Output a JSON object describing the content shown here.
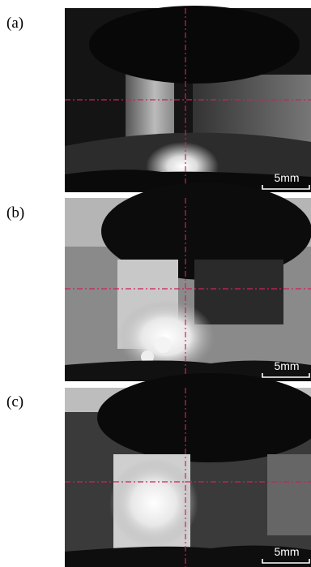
{
  "panels": [
    {
      "label": "(a)",
      "scale_bar": "5mm"
    },
    {
      "label": "(b)",
      "scale_bar": "5mm"
    },
    {
      "label": "(c)",
      "scale_bar": "5mm"
    }
  ]
}
